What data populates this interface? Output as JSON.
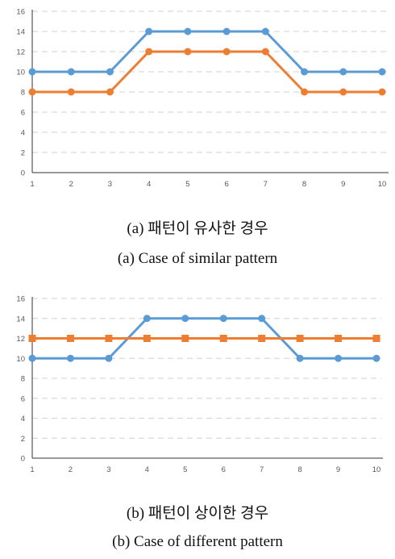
{
  "colors": {
    "blue": "#5b9bd5",
    "orange": "#ed7d31",
    "grid": "#d9d9d9",
    "axis": "#333333",
    "tick": "#595959"
  },
  "captions": {
    "a_korean": "(a)  패턴이  유사한  경우",
    "a_english": "(a)  Case  of  similar  pattern",
    "b_korean": "(b)  패턴이  상이한  경우",
    "b_english": "(b)  Case  of  different  pattern"
  },
  "chart_data": [
    {
      "type": "line",
      "x": [
        1,
        2,
        3,
        4,
        5,
        6,
        7,
        8,
        9,
        10
      ],
      "yticks": [
        0,
        2,
        4,
        6,
        8,
        10,
        12,
        14,
        16
      ],
      "ylim": [
        0,
        16
      ],
      "grid": "horizontal dashed",
      "series": [
        {
          "values": [
            10,
            10,
            10,
            14,
            14,
            14,
            14,
            10,
            10,
            10
          ],
          "color": "#5b9bd5",
          "marker": "circle"
        },
        {
          "values": [
            8,
            8,
            8,
            12,
            12,
            12,
            12,
            8,
            8,
            8
          ],
          "color": "#ed7d31",
          "marker": "circle"
        }
      ]
    },
    {
      "type": "line",
      "x": [
        1,
        2,
        3,
        4,
        5,
        6,
        7,
        8,
        9,
        10
      ],
      "yticks": [
        0,
        2,
        4,
        6,
        8,
        10,
        12,
        14,
        16
      ],
      "ylim": [
        0,
        16
      ],
      "grid": "horizontal dashed",
      "series": [
        {
          "values": [
            10,
            10,
            10,
            14,
            14,
            14,
            14,
            10,
            10,
            10
          ],
          "color": "#5b9bd5",
          "marker": "circle"
        },
        {
          "values": [
            12,
            12,
            12,
            12,
            12,
            12,
            12,
            12,
            12,
            12
          ],
          "color": "#ed7d31",
          "marker": "square"
        }
      ]
    }
  ]
}
